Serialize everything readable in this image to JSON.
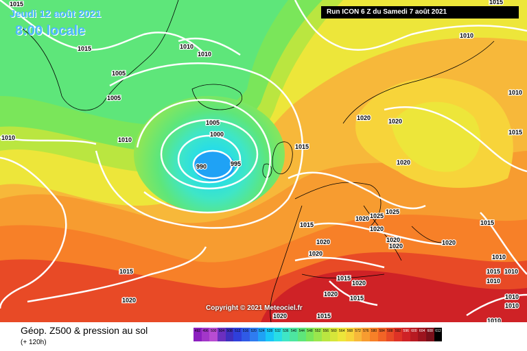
{
  "header": {
    "date": "Jeudi 12 août 2021",
    "time": "8:00 locale",
    "run": "Run ICON 6 Z du Samedi 7 août 2021"
  },
  "copyright": "Copyright © 2021 Meteociel.fr",
  "footer": {
    "title": "Géop. Z500 & pression au sol",
    "subtitle": "(+ 120h)"
  },
  "legend": {
    "values": [
      "492",
      "496",
      "500",
      "504",
      "508",
      "512",
      "516",
      "520",
      "524",
      "528",
      "532",
      "536",
      "540",
      "544",
      "548",
      "552",
      "556",
      "560",
      "564",
      "568",
      "572",
      "576",
      "580",
      "584",
      "588",
      "592",
      "596",
      "600",
      "604",
      "608",
      "612"
    ],
    "colors": [
      "#8c1fbf",
      "#a336c9",
      "#b84cd2",
      "#6b2fbf",
      "#3f2fbf",
      "#2f3fdb",
      "#2f5ae6",
      "#2f7cf0",
      "#1fa2f5",
      "#18c6f7",
      "#28dde6",
      "#3fe6c6",
      "#4de6a0",
      "#5ee67a",
      "#7ae65a",
      "#9ae64d",
      "#bae640",
      "#d6e63a",
      "#ede63a",
      "#f7d43a",
      "#f7b83a",
      "#f79c30",
      "#f78028",
      "#f26426",
      "#e84a26",
      "#de3226",
      "#cf2226",
      "#b81a22",
      "#9c141e",
      "#7a101a",
      "#000000"
    ]
  },
  "pressure_labels": [
    "1015",
    "1015",
    "1010",
    "1010",
    "1010",
    "1015",
    "1005",
    "1005",
    "1010",
    "1010",
    "1005",
    "1000",
    "995",
    "990",
    "1020",
    "1020",
    "1015",
    "1020",
    "1010",
    "1015",
    "1015",
    "1020",
    "1025",
    "1025",
    "1020",
    "1020",
    "1020",
    "1020",
    "1015",
    "1020",
    "1010",
    "1015",
    "1010",
    "1020",
    "1015",
    "1015",
    "1020",
    "1020",
    "1010",
    "1020",
    "1015",
    "1015",
    "1020",
    "1010",
    "1010",
    "1010"
  ]
}
